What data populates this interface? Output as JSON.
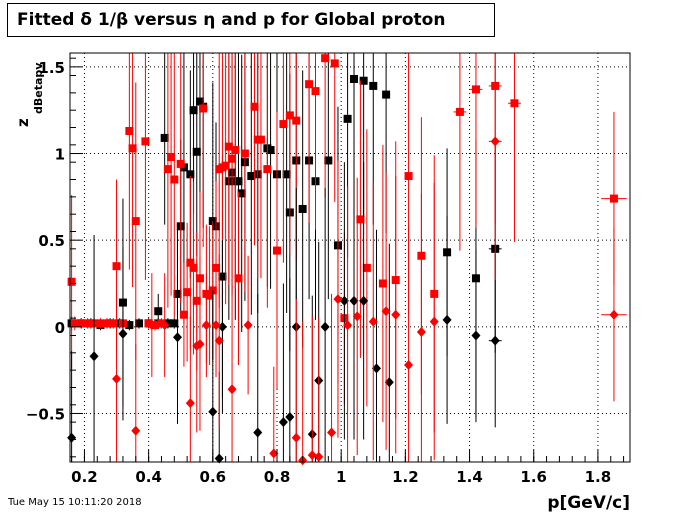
{
  "chart_data": {
    "type": "scatter",
    "title": "Fitted δ 1/β versus η and p for Global proton",
    "xlabel": "p[GeV/c]",
    "ylabel_main": "z",
    "ylabel_sub": "dBetapv",
    "xlim": [
      0.155,
      1.9
    ],
    "ylim": [
      -0.78,
      1.58
    ],
    "x_ticks": [
      0.2,
      0.4,
      0.6,
      0.8,
      1,
      1.2,
      1.4,
      1.6,
      1.8
    ],
    "x_tick_labels": [
      "0.2",
      "0.4",
      "0.6",
      "0.8",
      "1",
      "1.2",
      "1.4",
      "1.6",
      "1.8"
    ],
    "y_ticks": [
      -0.5,
      0,
      0.5,
      1,
      1.5
    ],
    "y_tick_labels": [
      "−0.5",
      "0",
      "0.5",
      "1",
      "1.5"
    ],
    "grid": true,
    "series": [
      {
        "color": "#000000",
        "marker": "square",
        "points": [
          [
            0.16,
            0.02,
            0.005,
            0.04
          ],
          [
            0.19,
            0.02,
            0.005,
            0.03
          ],
          [
            0.22,
            0.02,
            0.005,
            0.03
          ],
          [
            0.25,
            0.01,
            0.005,
            0.03
          ],
          [
            0.28,
            0.02,
            0.005,
            0.03
          ],
          [
            0.31,
            0.02,
            0.005,
            0.03
          ],
          [
            0.32,
            0.14,
            0.005,
            0.6
          ],
          [
            0.34,
            0.01,
            0.005,
            0.03
          ],
          [
            0.37,
            0.02,
            0.005,
            0.03
          ],
          [
            0.4,
            0.02,
            0.005,
            0.03
          ],
          [
            0.43,
            0.02,
            0.005,
            0.03
          ],
          [
            0.43,
            0.09,
            0.005,
            0.1
          ],
          [
            0.45,
            1.09,
            0.005,
            0.5
          ],
          [
            0.46,
            0.02,
            0.005,
            0.03
          ],
          [
            0.48,
            0.02,
            0.005,
            0.03
          ],
          [
            0.49,
            0.19,
            0.005,
            0.4
          ],
          [
            0.5,
            0.58,
            0.005,
            0.5
          ],
          [
            0.51,
            0.92,
            0.005,
            0.9
          ],
          [
            0.53,
            0.88,
            0.005,
            0.6
          ],
          [
            0.54,
            1.25,
            0.005,
            0.6
          ],
          [
            0.55,
            1.01,
            0.005,
            0.6
          ],
          [
            0.56,
            1.3,
            0.005,
            0.7
          ],
          [
            0.57,
            1.27,
            0.005,
            0.7
          ],
          [
            0.6,
            0.61,
            0.005,
            0.8
          ],
          [
            0.61,
            0.58,
            0.005,
            0.6
          ],
          [
            0.63,
            0.29,
            0.005,
            0.7
          ],
          [
            0.65,
            0.84,
            0.005,
            0.8
          ],
          [
            0.66,
            0.89,
            0.005,
            0.7
          ],
          [
            0.67,
            0.84,
            0.005,
            0.8
          ],
          [
            0.68,
            0.84,
            0.005,
            0.8
          ],
          [
            0.69,
            0.77,
            0.005,
            0.8
          ],
          [
            0.7,
            0.95,
            0.005,
            0.8
          ],
          [
            0.72,
            0.87,
            0.005,
            0.8
          ],
          [
            0.74,
            0.88,
            0.005,
            0.8
          ],
          [
            0.77,
            1.03,
            0.005,
            0.8
          ],
          [
            0.78,
            1.02,
            0.005,
            0.8
          ],
          [
            0.8,
            0.88,
            0.005,
            0.8
          ],
          [
            0.83,
            0.88,
            0.005,
            0.8
          ],
          [
            0.84,
            0.66,
            0.005,
            0.8
          ],
          [
            0.86,
            0.96,
            0.005,
            0.8
          ],
          [
            0.88,
            0.68,
            0.005,
            0.8
          ],
          [
            0.9,
            0.96,
            0.005,
            0.8
          ],
          [
            0.92,
            0.84,
            0.005,
            0.8
          ],
          [
            0.96,
            0.96,
            0.005,
            0.8
          ],
          [
            0.99,
            0.47,
            0.005,
            0.8
          ],
          [
            1.02,
            1.2,
            0.005,
            0.8
          ],
          [
            1.04,
            1.43,
            0.005,
            0.8
          ],
          [
            1.07,
            1.42,
            0.005,
            0.8
          ],
          [
            1.1,
            1.39,
            0.005,
            0.8
          ],
          [
            1.14,
            1.34,
            0.005,
            0.8
          ],
          [
            1.33,
            0.43,
            0.005,
            0.6
          ],
          [
            1.42,
            0.28,
            0.005,
            0.8
          ],
          [
            1.48,
            0.45,
            0.02,
            0.6
          ]
        ]
      },
      {
        "color": "#ff0000",
        "marker": "square",
        "points": [
          [
            0.16,
            0.26,
            0.005,
            0.5
          ],
          [
            0.17,
            0.02,
            0.005,
            0.04
          ],
          [
            0.19,
            0.02,
            0.005,
            0.03
          ],
          [
            0.21,
            0.02,
            0.005,
            0.03
          ],
          [
            0.23,
            0.02,
            0.005,
            0.03
          ],
          [
            0.25,
            0.02,
            0.005,
            0.03
          ],
          [
            0.27,
            0.02,
            0.005,
            0.03
          ],
          [
            0.29,
            0.02,
            0.005,
            0.03
          ],
          [
            0.3,
            0.35,
            0.005,
            0.5
          ],
          [
            0.32,
            0.02,
            0.005,
            0.03
          ],
          [
            0.34,
            1.13,
            0.005,
            0.8
          ],
          [
            0.35,
            1.03,
            0.005,
            0.8
          ],
          [
            0.36,
            0.61,
            0.005,
            0.8
          ],
          [
            0.39,
            1.07,
            0.005,
            0.8
          ],
          [
            0.4,
            0.02,
            0.005,
            0.03
          ],
          [
            0.42,
            0.01,
            0.005,
            0.03
          ],
          [
            0.44,
            0.02,
            0.005,
            0.03
          ],
          [
            0.46,
            0.91,
            0.005,
            0.8
          ],
          [
            0.47,
            0.98,
            0.005,
            0.8
          ],
          [
            0.48,
            0.85,
            0.005,
            0.8
          ],
          [
            0.5,
            0.94,
            0.005,
            0.8
          ],
          [
            0.51,
            0.07,
            0.005,
            0.3
          ],
          [
            0.52,
            0.2,
            0.005,
            0.4
          ],
          [
            0.53,
            0.37,
            0.005,
            0.5
          ],
          [
            0.54,
            0.34,
            0.005,
            0.5
          ],
          [
            0.55,
            0.15,
            0.005,
            0.4
          ],
          [
            0.56,
            0.28,
            0.005,
            0.5
          ],
          [
            0.57,
            1.26,
            0.005,
            0.8
          ],
          [
            0.58,
            0.19,
            0.005,
            0.4
          ],
          [
            0.59,
            0.18,
            0.005,
            0.4
          ],
          [
            0.6,
            0.21,
            0.005,
            0.4
          ],
          [
            0.61,
            0.34,
            0.005,
            0.5
          ],
          [
            0.62,
            0.91,
            0.005,
            0.8
          ],
          [
            0.63,
            0.92,
            0.005,
            0.8
          ],
          [
            0.64,
            0.93,
            0.005,
            0.8
          ],
          [
            0.65,
            1.04,
            0.005,
            0.8
          ],
          [
            0.66,
            0.97,
            0.005,
            0.8
          ],
          [
            0.67,
            1.02,
            0.005,
            0.8
          ],
          [
            0.68,
            0.28,
            0.005,
            0.5
          ],
          [
            0.7,
            1.0,
            0.005,
            0.8
          ],
          [
            0.73,
            1.27,
            0.005,
            0.8
          ],
          [
            0.74,
            1.08,
            0.005,
            0.8
          ],
          [
            0.75,
            1.08,
            0.005,
            0.8
          ],
          [
            0.77,
            0.91,
            0.005,
            0.8
          ],
          [
            0.8,
            0.44,
            0.005,
            0.8
          ],
          [
            0.82,
            1.17,
            0.005,
            0.8
          ],
          [
            0.84,
            1.22,
            0.005,
            0.8
          ],
          [
            0.86,
            1.19,
            0.005,
            0.8
          ],
          [
            0.9,
            1.4,
            0.005,
            0.8
          ],
          [
            0.92,
            1.36,
            0.005,
            0.8
          ],
          [
            0.95,
            1.55,
            0.005,
            0.8
          ],
          [
            0.98,
            1.52,
            0.005,
            0.8
          ],
          [
            1.01,
            0.05,
            0.005,
            0.5
          ],
          [
            1.06,
            0.62,
            0.005,
            0.8
          ],
          [
            1.08,
            0.34,
            0.005,
            0.8
          ],
          [
            1.13,
            0.25,
            0.005,
            0.8
          ],
          [
            1.17,
            0.27,
            0.005,
            0.8
          ],
          [
            1.21,
            0.87,
            0.005,
            0.8
          ],
          [
            1.25,
            0.41,
            0.005,
            0.8
          ],
          [
            1.29,
            0.19,
            0.005,
            0.8
          ],
          [
            1.37,
            1.24,
            0.02,
            0.8
          ],
          [
            1.42,
            1.37,
            0.02,
            0.8
          ],
          [
            1.48,
            1.39,
            0.02,
            0.8
          ],
          [
            1.54,
            1.29,
            0.02,
            0.8
          ],
          [
            1.85,
            0.74,
            0.04,
            0.5
          ]
        ]
      },
      {
        "color": "#000000",
        "marker": "diamond",
        "points": [
          [
            0.16,
            -0.64,
            0.005,
            0.5
          ],
          [
            0.23,
            -0.17,
            0.005,
            0.7
          ],
          [
            0.32,
            -0.04,
            0.005,
            0.5
          ],
          [
            0.49,
            -0.06,
            0.005,
            0.5
          ],
          [
            0.6,
            -0.49,
            0.005,
            0.7
          ],
          [
            0.62,
            -0.76,
            0.005,
            0.5
          ],
          [
            0.63,
            0.0,
            0.005,
            0.5
          ],
          [
            0.74,
            -0.61,
            0.005,
            0.8
          ],
          [
            0.82,
            -0.55,
            0.005,
            0.8
          ],
          [
            0.84,
            -0.52,
            0.005,
            0.8
          ],
          [
            0.86,
            0.0,
            0.005,
            0.8
          ],
          [
            0.91,
            -0.62,
            0.005,
            0.8
          ],
          [
            0.93,
            -0.31,
            0.005,
            0.8
          ],
          [
            0.95,
            0.0,
            0.005,
            0.8
          ],
          [
            1.01,
            0.15,
            0.005,
            0.8
          ],
          [
            1.04,
            0.15,
            0.005,
            0.8
          ],
          [
            1.07,
            0.15,
            0.005,
            0.8
          ],
          [
            1.11,
            -0.24,
            0.005,
            0.8
          ],
          [
            1.15,
            -0.32,
            0.005,
            0.8
          ],
          [
            1.33,
            0.04,
            0.005,
            0.6
          ],
          [
            1.42,
            -0.05,
            0.005,
            0.5
          ],
          [
            1.48,
            -0.08,
            0.02,
            0.5
          ]
        ]
      },
      {
        "color": "#ff0000",
        "marker": "diamond",
        "points": [
          [
            0.3,
            -0.3,
            0.005,
            0.5
          ],
          [
            0.36,
            -0.6,
            0.005,
            0.5
          ],
          [
            0.41,
            0.01,
            0.005,
            0.3
          ],
          [
            0.45,
            0.01,
            0.005,
            0.3
          ],
          [
            0.53,
            -0.44,
            0.005,
            0.5
          ],
          [
            0.55,
            -0.11,
            0.005,
            0.5
          ],
          [
            0.56,
            -0.1,
            0.005,
            0.5
          ],
          [
            0.58,
            0.01,
            0.005,
            0.3
          ],
          [
            0.61,
            0.01,
            0.005,
            0.3
          ],
          [
            0.62,
            -0.08,
            0.005,
            0.5
          ],
          [
            0.66,
            -0.36,
            0.005,
            0.6
          ],
          [
            0.71,
            0.01,
            0.005,
            0.4
          ],
          [
            0.79,
            -0.73,
            0.005,
            0.5
          ],
          [
            0.86,
            -0.64,
            0.005,
            0.8
          ],
          [
            0.88,
            -0.77,
            0.005,
            0.8
          ],
          [
            0.91,
            -0.74,
            0.005,
            0.8
          ],
          [
            0.93,
            -0.75,
            0.005,
            0.8
          ],
          [
            0.97,
            -0.61,
            0.005,
            0.8
          ],
          [
            0.99,
            0.16,
            0.005,
            0.8
          ],
          [
            1.02,
            0.01,
            0.005,
            0.8
          ],
          [
            1.05,
            0.06,
            0.005,
            0.8
          ],
          [
            1.1,
            0.03,
            0.005,
            0.8
          ],
          [
            1.14,
            0.09,
            0.005,
            0.8
          ],
          [
            1.17,
            0.07,
            0.005,
            0.8
          ],
          [
            1.21,
            -0.22,
            0.005,
            0.8
          ],
          [
            1.25,
            -0.03,
            0.005,
            0.8
          ],
          [
            1.29,
            0.03,
            0.005,
            0.8
          ],
          [
            1.48,
            1.07,
            0.02,
            0.8
          ],
          [
            1.85,
            0.07,
            0.04,
            0.5
          ]
        ]
      }
    ]
  },
  "footer": {
    "date": "Tue May 15 10:11:20 2018"
  }
}
